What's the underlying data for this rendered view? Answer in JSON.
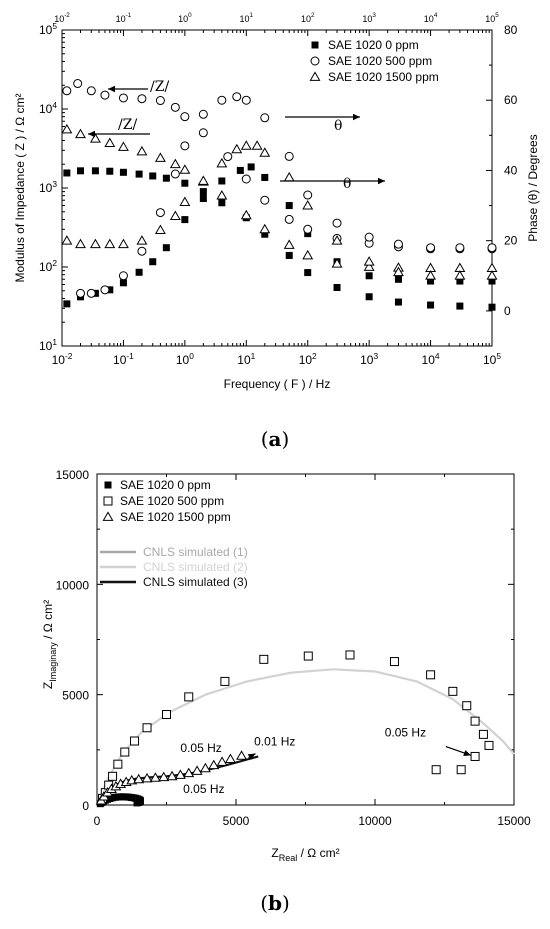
{
  "chart_data": [
    {
      "id": "a",
      "type": "scatter",
      "caption": {
        "open": "(",
        "letter": "a",
        "close": ")"
      },
      "xlabel": "Frequency ( F ) / Hz",
      "ylabel": "Modulus of Impedance ( Z ) / Ω cm²",
      "y2label": "Phase (θ) / Degrees",
      "xscale": "log",
      "yscale": "log",
      "xlim": [
        0.01,
        100000
      ],
      "ylim": [
        10,
        100000
      ],
      "y2lim": [
        -10,
        80
      ],
      "x_ticks": [
        {
          "v": 0.01,
          "b": "10",
          "e": "-2"
        },
        {
          "v": 0.1,
          "b": "10",
          "e": "-1"
        },
        {
          "v": 1,
          "b": "10",
          "e": "0"
        },
        {
          "v": 10,
          "b": "10",
          "e": "1"
        },
        {
          "v": 100,
          "b": "10",
          "e": "2"
        },
        {
          "v": 1000,
          "b": "10",
          "e": "3"
        },
        {
          "v": 10000,
          "b": "10",
          "e": "4"
        },
        {
          "v": 100000,
          "b": "10",
          "e": "5"
        }
      ],
      "y_ticks": [
        {
          "v": 10,
          "b": "10",
          "e": "1"
        },
        {
          "v": 100,
          "b": "10",
          "e": "2"
        },
        {
          "v": 1000,
          "b": "10",
          "e": "3"
        },
        {
          "v": 10000,
          "b": "10",
          "e": "4"
        },
        {
          "v": 100000,
          "b": "10",
          "e": "5"
        }
      ],
      "y2_ticks": [
        "0",
        "20",
        "40",
        "60",
        "80"
      ],
      "legend_position": "top-right",
      "legend": [
        {
          "marker": "filled-square",
          "label": "SAE 1020     0 ppm"
        },
        {
          "marker": "open-circle",
          "label": "SAE 1020   500 ppm"
        },
        {
          "marker": "open-triangle",
          "label": "SAE 1020  1500 ppm"
        }
      ],
      "annotations": [
        {
          "text": "/Z/",
          "points_to": "left",
          "series": "500 ppm modulus"
        },
        {
          "text": "/Z/",
          "points_to": "left",
          "series": "1500 ppm modulus"
        },
        {
          "text": "θ",
          "points_to": "right",
          "series": "500 ppm phase"
        },
        {
          "text": "θ",
          "points_to": "right",
          "series": "0 ppm phase"
        }
      ],
      "series": [
        {
          "name": "0 ppm |Z|",
          "marker": "filled-square",
          "axis": "left",
          "x": [
            0.012,
            0.02,
            0.035,
            0.06,
            0.1,
            0.18,
            0.3,
            0.5,
            1,
            2,
            4,
            10,
            20,
            50,
            100,
            300,
            1000,
            3000,
            10000,
            30000,
            100000
          ],
          "y": [
            1550,
            1650,
            1650,
            1630,
            1580,
            1500,
            1420,
            1330,
            1150,
            900,
            650,
            420,
            260,
            140,
            85,
            55,
            42,
            36,
            33,
            32,
            31
          ]
        },
        {
          "name": "0 ppm phase",
          "marker": "filled-square",
          "axis": "right",
          "x": [
            0.012,
            0.02,
            0.035,
            0.06,
            0.1,
            0.18,
            0.3,
            0.5,
            1,
            2,
            4,
            8,
            12,
            20,
            50,
            100,
            300,
            1000,
            3000,
            10000,
            30000,
            100000
          ],
          "y": [
            2,
            4,
            5,
            6,
            8,
            11,
            14,
            18,
            26,
            32,
            37,
            40,
            41,
            38,
            30,
            22,
            14,
            10,
            9,
            8.5,
            8.5,
            8.5
          ]
        },
        {
          "name": "500 ppm |Z|",
          "marker": "open-circle",
          "axis": "left",
          "x": [
            0.012,
            0.018,
            0.03,
            0.05,
            0.1,
            0.2,
            0.4,
            0.7,
            1,
            2,
            5,
            10,
            20,
            50,
            100,
            300,
            1000,
            3000,
            10000,
            30000,
            100000
          ],
          "y": [
            17000,
            21000,
            17000,
            15000,
            13800,
            13500,
            12800,
            10500,
            8000,
            5000,
            2500,
            1300,
            700,
            400,
            300,
            230,
            200,
            180,
            170,
            170,
            170
          ]
        },
        {
          "name": "500 ppm phase",
          "marker": "open-circle",
          "axis": "right",
          "x": [
            0.02,
            0.03,
            0.05,
            0.1,
            0.2,
            0.4,
            0.7,
            1,
            2,
            4,
            7,
            10,
            20,
            50,
            100,
            300,
            1000,
            3000,
            10000,
            30000,
            100000
          ],
          "y": [
            5,
            5,
            6,
            10,
            17,
            28,
            39,
            47,
            56,
            60,
            61,
            60,
            55,
            44,
            33,
            25,
            21,
            19,
            18,
            18,
            18
          ]
        },
        {
          "name": "1500 ppm |Z|",
          "marker": "open-triangle",
          "axis": "left",
          "x": [
            0.012,
            0.02,
            0.035,
            0.06,
            0.1,
            0.2,
            0.4,
            0.7,
            1,
            2,
            4,
            10,
            20,
            50,
            100,
            300,
            1000,
            3000,
            10000,
            30000,
            100000
          ],
          "y": [
            5500,
            4800,
            4200,
            3700,
            3300,
            2900,
            2400,
            2000,
            1700,
            1200,
            800,
            450,
            300,
            190,
            140,
            110,
            100,
            98,
            97,
            97,
            97
          ]
        },
        {
          "name": "1500 ppm phase",
          "marker": "open-triangle",
          "axis": "right",
          "x": [
            0.012,
            0.02,
            0.035,
            0.06,
            0.1,
            0.2,
            0.4,
            0.7,
            1,
            2,
            4,
            7,
            10,
            15,
            20,
            50,
            100,
            300,
            1000,
            3000,
            10000,
            30000,
            100000
          ],
          "y": [
            20,
            19,
            19,
            19,
            19,
            20,
            23,
            27,
            31,
            37,
            42,
            46,
            47,
            47,
            45,
            38,
            30,
            20,
            14,
            11,
            10,
            10,
            10
          ]
        }
      ]
    },
    {
      "id": "b",
      "type": "scatter",
      "caption": {
        "open": "(",
        "letter": "b",
        "close": ")"
      },
      "xlabel": {
        "main": "Z",
        "sub": "Real",
        "rest": " / Ω cm²"
      },
      "ylabel": {
        "main": "Z",
        "sub": "Imaginary",
        "rest": " / Ω cm²"
      },
      "xlim": [
        0,
        15000
      ],
      "ylim": [
        0,
        15000
      ],
      "x_ticks": [
        "0",
        "5000",
        "10000",
        "15000"
      ],
      "y_ticks": [
        "0",
        "5000",
        "10000",
        "15000"
      ],
      "legend_position": "top-left",
      "legend": [
        {
          "marker": "filled-square",
          "label": "SAE 1020     0 ppm"
        },
        {
          "marker": "open-square",
          "label": "SAE 1020   500 ppm"
        },
        {
          "marker": "open-triangle",
          "label": "SAE 1020 1500 ppm"
        }
      ],
      "line_legend": [
        {
          "label": "CNLS simulated (1)",
          "color": "#a8a8a8"
        },
        {
          "label": "CNLS simulated (2)",
          "color": "#d2d2d2"
        },
        {
          "label": "CNLS simulated (3)",
          "color": "#111111"
        }
      ],
      "annotations": [
        {
          "text": "0.05 Hz",
          "x": 4100,
          "y": 2280
        },
        {
          "text": "0.01 Hz",
          "x": 7500,
          "y": 2670
        },
        {
          "text": "0.05 Hz",
          "x": 3200,
          "y": 150
        },
        {
          "text": "0.05 Hz",
          "x": 12900,
          "y": 2950
        }
      ],
      "series": [
        {
          "name": "0 ppm",
          "marker": "filled-square",
          "x": [
            120,
            170,
            230,
            300,
            380,
            470,
            560,
            660,
            760,
            860,
            960,
            1060,
            1150,
            1240,
            1320,
            1390,
            1450,
            1500,
            1540,
            1560,
            1560,
            1540,
            1500,
            1440
          ],
          "y": [
            60,
            110,
            165,
            215,
            260,
            295,
            330,
            350,
            365,
            370,
            370,
            365,
            355,
            340,
            325,
            305,
            280,
            255,
            225,
            195,
            165,
            135,
            115,
            95
          ]
        },
        {
          "name": "500 ppm",
          "marker": "open-square",
          "x": [
            200,
            300,
            420,
            560,
            750,
            1000,
            1350,
            1800,
            2500,
            3300,
            4600,
            6000,
            7600,
            9100,
            10700,
            12000,
            12800,
            13300,
            13600,
            13900,
            14100,
            13600,
            13100,
            12200
          ],
          "y": [
            300,
            560,
            900,
            1300,
            1850,
            2400,
            2900,
            3500,
            4100,
            4900,
            5600,
            6600,
            6750,
            6800,
            6500,
            5900,
            5150,
            4500,
            3800,
            3200,
            2700,
            2200,
            1600,
            1600
          ]
        },
        {
          "name": "1500 ppm",
          "marker": "open-triangle",
          "x": [
            150,
            250,
            380,
            520,
            680,
            850,
            1050,
            1250,
            1500,
            1800,
            2100,
            2400,
            2700,
            3000,
            3300,
            3600,
            3900,
            4200,
            4500,
            4800,
            5200
          ],
          "y": [
            200,
            380,
            560,
            720,
            840,
            950,
            1040,
            1110,
            1160,
            1200,
            1230,
            1260,
            1300,
            1360,
            1440,
            1540,
            1660,
            1800,
            1950,
            2080,
            2230
          ]
        },
        {
          "name": "CNLS simulated (1)",
          "marker": "line",
          "color": "#a8a8a8",
          "x": [
            100,
            250,
            450,
            700,
            950,
            1200,
            1420,
            1560
          ],
          "y": [
            60,
            210,
            320,
            370,
            370,
            330,
            240,
            110
          ]
        },
        {
          "name": "CNLS simulated (2)",
          "marker": "line",
          "color": "#d2d2d2",
          "x": [
            100,
            400,
            900,
            1600,
            2600,
            3900,
            5400,
            7000,
            8500,
            10000,
            11500,
            12800,
            13900,
            14600,
            15000
          ],
          "y": [
            300,
            1200,
            2300,
            3300,
            4200,
            5000,
            5600,
            6000,
            6150,
            6050,
            5600,
            4800,
            3700,
            2900,
            2300
          ]
        },
        {
          "name": "CNLS simulated (3)",
          "marker": "line",
          "color": "#111111",
          "x": [
            100,
            250,
            450,
            700,
            1000,
            1400,
            1900,
            2500,
            3100,
            3700,
            4300,
            4900,
            5400,
            5800
          ],
          "y": [
            150,
            420,
            700,
            920,
            1080,
            1190,
            1250,
            1300,
            1380,
            1510,
            1690,
            1890,
            2060,
            2200
          ]
        },
        {
          "name": "CNLS simulated (3) low-frequency arc",
          "marker": "line",
          "color": "#111111",
          "x": [
            80,
            200,
            380,
            600,
            850,
            1100,
            1320,
            1480,
            1550
          ],
          "y": [
            40,
            170,
            290,
            355,
            370,
            340,
            260,
            150,
            60
          ]
        }
      ]
    }
  ]
}
